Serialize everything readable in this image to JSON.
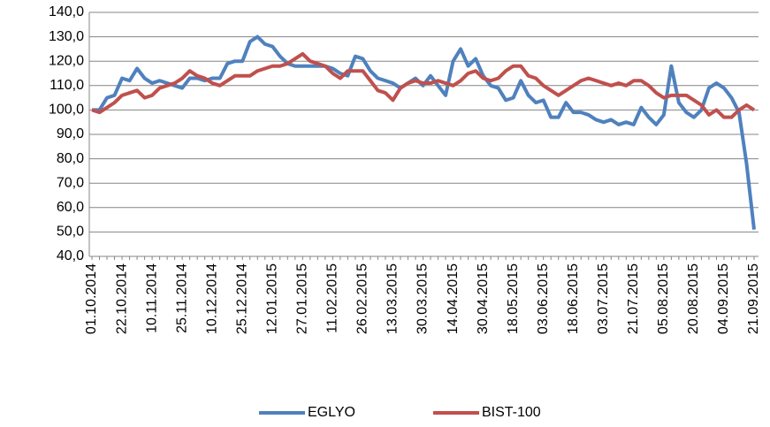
{
  "chart_data": {
    "type": "line",
    "categories": [
      "01.10.2014",
      null,
      null,
      null,
      "22.10.2014",
      null,
      null,
      null,
      "10.11.2014",
      null,
      null,
      null,
      "25.11.2014",
      null,
      null,
      null,
      "10.12.2014",
      null,
      null,
      null,
      "25.12.2014",
      null,
      null,
      null,
      "12.01.2015",
      null,
      null,
      null,
      "27.01.2015",
      null,
      null,
      null,
      "11.02.2015",
      null,
      null,
      null,
      "26.02.2015",
      null,
      null,
      null,
      "13.03.2015",
      null,
      null,
      null,
      "30.03.2015",
      null,
      null,
      null,
      "14.04.2015",
      null,
      null,
      null,
      "30.04.2015",
      null,
      null,
      null,
      "18.05.2015",
      null,
      null,
      null,
      "03.06.2015",
      null,
      null,
      null,
      "18.06.2015",
      null,
      null,
      null,
      "03.07.2015",
      null,
      null,
      null,
      "21.07.2015",
      null,
      null,
      null,
      "05.08.2015",
      null,
      null,
      null,
      "20.08.2015",
      null,
      null,
      null,
      "04.09.2015",
      null,
      null,
      null,
      "21.09.2015"
    ],
    "series": [
      {
        "name": "EGLYO",
        "color": "#4f81bd",
        "values": [
          100,
          100,
          105,
          106,
          113,
          112,
          117,
          113,
          111,
          112,
          111,
          110,
          109,
          113,
          113,
          112,
          113,
          113,
          119,
          120,
          120,
          128,
          130,
          127,
          126,
          122,
          119,
          118,
          118,
          118,
          118,
          118,
          117,
          115,
          114,
          122,
          121,
          116,
          113,
          112,
          111,
          109,
          111,
          113,
          110,
          114,
          110,
          106,
          120,
          125,
          118,
          121,
          114,
          110,
          109,
          104,
          105,
          112,
          106,
          103,
          104,
          97,
          97,
          103,
          99,
          99,
          98,
          96,
          95,
          96,
          94,
          95,
          94,
          101,
          97,
          94,
          98,
          118,
          103,
          99,
          97,
          100,
          109,
          111,
          109,
          105,
          99,
          78,
          51
        ]
      },
      {
        "name": "BIST-100",
        "color": "#c0504d",
        "values": [
          100,
          99,
          101,
          103,
          106,
          107,
          108,
          105,
          106,
          109,
          110,
          111,
          113,
          116,
          114,
          113,
          111,
          110,
          112,
          114,
          114,
          114,
          116,
          117,
          118,
          118,
          119,
          121,
          123,
          120,
          119,
          118,
          115,
          113,
          116,
          116,
          116,
          112,
          108,
          107,
          104,
          109,
          111,
          112,
          111,
          111,
          112,
          111,
          110,
          112,
          115,
          116,
          113,
          112,
          113,
          116,
          118,
          118,
          114,
          113,
          110,
          108,
          106,
          108,
          110,
          112,
          113,
          112,
          111,
          110,
          111,
          110,
          112,
          112,
          110,
          107,
          105,
          106,
          106,
          106,
          104,
          102,
          98,
          100,
          97,
          97,
          100,
          102,
          100
        ]
      }
    ],
    "ylim": [
      40,
      140
    ],
    "yticks": [
      {
        "value": 40,
        "label": "40,0"
      },
      {
        "value": 50,
        "label": "50,0"
      },
      {
        "value": 60,
        "label": "60,0"
      },
      {
        "value": 70,
        "label": "70,0"
      },
      {
        "value": 80,
        "label": "80,0"
      },
      {
        "value": 90,
        "label": "90,0"
      },
      {
        "value": 100,
        "label": "100,0"
      },
      {
        "value": 110,
        "label": "110,0"
      },
      {
        "value": 120,
        "label": "120,0"
      },
      {
        "value": 130,
        "label": "130,0"
      },
      {
        "value": 140,
        "label": "140,0"
      }
    ],
    "grid": true,
    "legend": "bottom"
  }
}
